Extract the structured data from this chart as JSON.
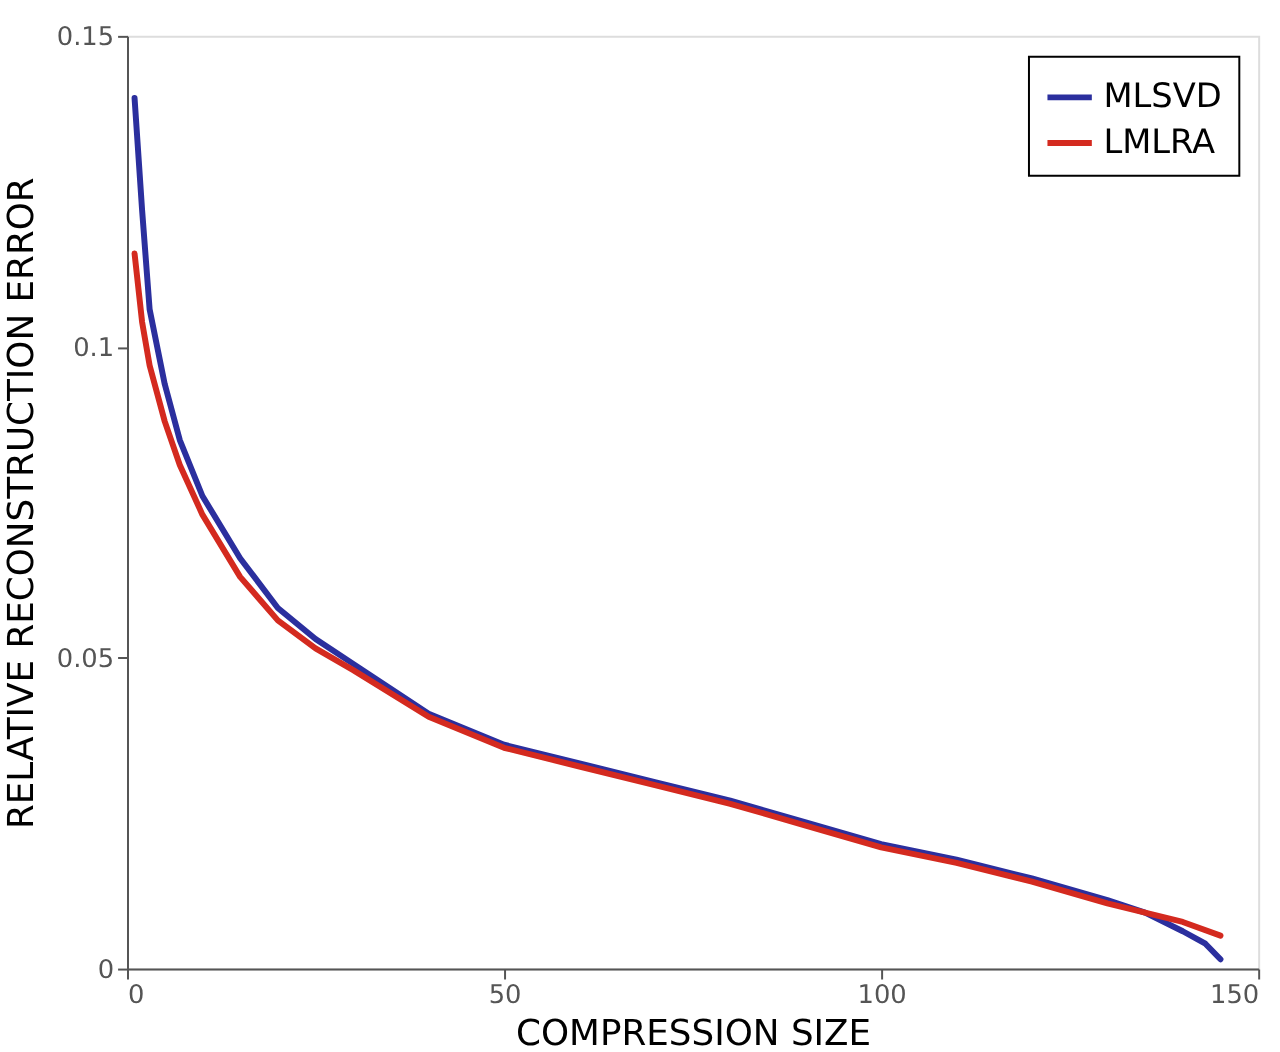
{
  "chart_data": {
    "type": "line",
    "xlabel": "COMPRESSION SIZE",
    "ylabel": "RELATIVE RECONSTRUCTION ERROR",
    "xlim": [
      0,
      150
    ],
    "xticks": [
      0,
      50,
      100,
      150
    ],
    "ylim": [
      0,
      0.15
    ],
    "yticks": [
      0,
      0.05,
      0.1,
      0.15
    ],
    "grid": false,
    "legend": "top right",
    "marker": "none",
    "line_style": "solid",
    "series": [
      {
        "name": "MLSVD",
        "color": "#2b2f9e",
        "x": [
          1,
          2,
          3,
          5,
          7,
          10,
          15,
          20,
          25,
          30,
          40,
          50,
          60,
          70,
          80,
          90,
          100,
          110,
          120,
          130,
          135,
          140,
          143,
          145
        ],
        "values": [
          0.14,
          0.122,
          0.106,
          0.094,
          0.085,
          0.076,
          0.066,
          0.058,
          0.053,
          0.049,
          0.041,
          0.036,
          0.033,
          0.03,
          0.027,
          0.0235,
          0.02,
          0.0175,
          0.0145,
          0.011,
          0.009,
          0.006,
          0.004,
          0.0015
        ]
      },
      {
        "name": "LMLRA",
        "color": "#d42a1f",
        "x": [
          1,
          2,
          3,
          5,
          7,
          10,
          15,
          20,
          25,
          30,
          40,
          50,
          60,
          70,
          80,
          90,
          100,
          110,
          120,
          130,
          135,
          140,
          145
        ],
        "values": [
          0.115,
          0.104,
          0.097,
          0.088,
          0.081,
          0.073,
          0.063,
          0.056,
          0.0515,
          0.048,
          0.0405,
          0.0355,
          0.0325,
          0.0295,
          0.0265,
          0.023,
          0.0195,
          0.017,
          0.014,
          0.0105,
          0.009,
          0.0075,
          0.0053
        ]
      }
    ]
  }
}
